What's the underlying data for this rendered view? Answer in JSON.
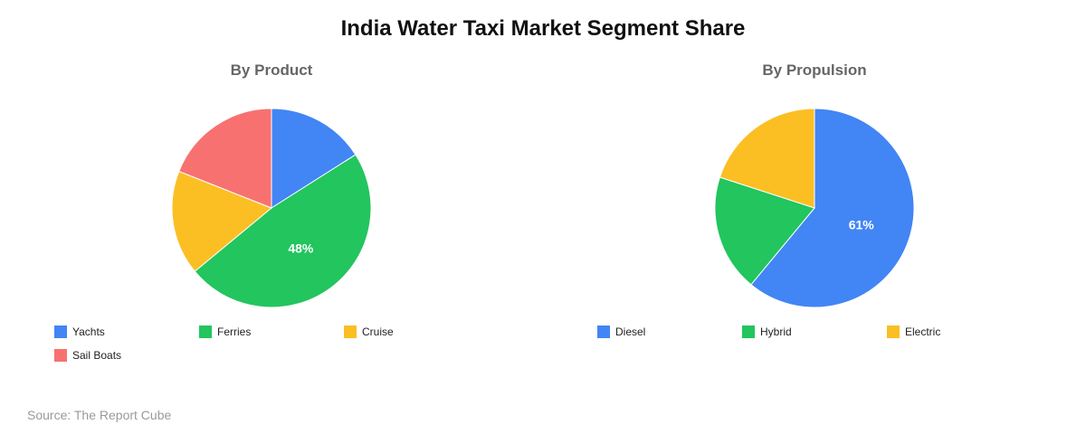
{
  "title": "India Water Taxi Market Segment Share",
  "source": "Source: The Report Cube",
  "chart_data": [
    {
      "type": "pie",
      "title": "By Product",
      "labels": [
        "Yachts",
        "Ferries",
        "Cruise",
        "Sail Boats"
      ],
      "values": [
        16,
        48,
        17,
        19
      ],
      "colors": [
        "#4285F4",
        "#22C55E",
        "#FBBF24",
        "#F87171"
      ],
      "data_labels": [
        "",
        "48%",
        "",
        ""
      ],
      "legend_position": "bottom"
    },
    {
      "type": "pie",
      "title": "By Propulsion",
      "labels": [
        "Diesel",
        "Hybrid",
        "Electric"
      ],
      "values": [
        61,
        19,
        20
      ],
      "colors": [
        "#4285F4",
        "#22C55E",
        "#FBBF24"
      ],
      "data_labels": [
        "61%",
        "",
        ""
      ],
      "legend_position": "bottom"
    }
  ]
}
